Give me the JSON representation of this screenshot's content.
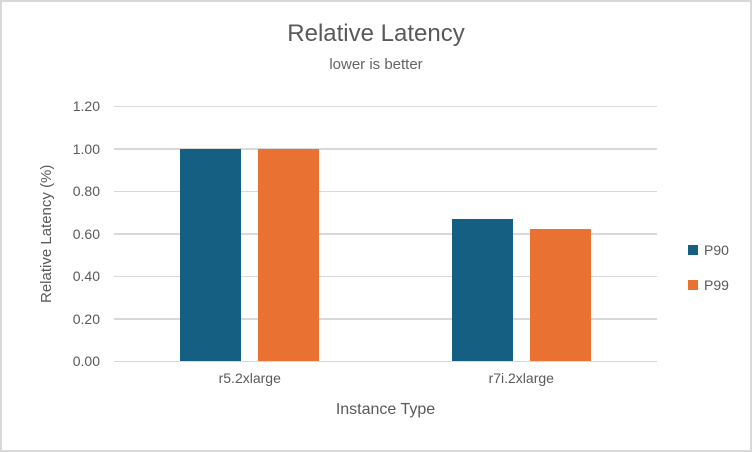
{
  "chart_data": {
    "type": "bar",
    "title": "Relative Latency",
    "subtitle": "lower is better",
    "xlabel": "Instance Type",
    "ylabel": "Relative Latency (%)",
    "categories": [
      "r5.2xlarge",
      "r7i.2xlarge"
    ],
    "series": [
      {
        "name": "P90",
        "color": "#156082",
        "values": [
          1.0,
          0.67
        ]
      },
      {
        "name": "P99",
        "color": "#E97132",
        "values": [
          1.0,
          0.62
        ]
      }
    ],
    "ylim": [
      0,
      1.2
    ],
    "ytick_step": 0.2,
    "ytick_labels": [
      "0.00",
      "0.20",
      "0.40",
      "0.60",
      "0.80",
      "1.00",
      "1.20"
    ],
    "grid": true,
    "legend_position": "right",
    "colors": {
      "text": "#595959",
      "gridline": "#d9d9d9",
      "frame_border": "#d8d8d8",
      "background": "#ffffff"
    }
  }
}
